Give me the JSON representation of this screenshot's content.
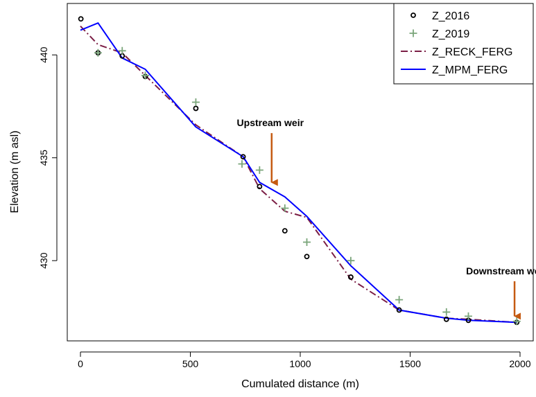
{
  "chart_data": {
    "type": "line",
    "xlabel": "Cumulated distance (m)",
    "ylabel": "Elevation (m asl)",
    "xlim": [
      -60,
      2060
    ],
    "ylim": [
      426.1,
      442.5
    ],
    "xticks": [
      0,
      500,
      1000,
      1500,
      2000
    ],
    "yticks": [
      430,
      435,
      440
    ],
    "grid": false,
    "legend_position": "top-right",
    "series": [
      {
        "name": "Z_2016",
        "kind": "points",
        "marker": "circle",
        "color": "#000000",
        "points": [
          [
            2,
            441.75
          ],
          [
            80,
            440.1
          ],
          [
            190,
            439.95
          ],
          [
            295,
            438.95
          ],
          [
            525,
            437.4
          ],
          [
            740,
            435.05
          ],
          [
            815,
            433.6
          ],
          [
            930,
            431.45
          ],
          [
            1030,
            430.2
          ],
          [
            1230,
            429.2
          ],
          [
            1450,
            427.6
          ],
          [
            1665,
            427.15
          ],
          [
            1765,
            427.1
          ],
          [
            1985,
            427.0
          ]
        ]
      },
      {
        "name": "Z_2019",
        "kind": "points",
        "marker": "plus",
        "color": "#7aa57a",
        "points": [
          [
            80,
            440.1
          ],
          [
            190,
            440.2
          ],
          [
            295,
            439.0
          ],
          [
            525,
            437.7
          ],
          [
            735,
            434.7
          ],
          [
            815,
            434.4
          ],
          [
            930,
            432.55
          ],
          [
            1030,
            430.9
          ],
          [
            1230,
            430.0
          ],
          [
            1450,
            428.1
          ],
          [
            1665,
            427.5
          ],
          [
            1765,
            427.3
          ],
          [
            1985,
            427.05
          ]
        ]
      },
      {
        "name": "Z_RECK_FERG",
        "kind": "line",
        "dash": "10,4,2,4",
        "color": "#7b1e45",
        "points": [
          [
            0,
            441.4
          ],
          [
            80,
            440.5
          ],
          [
            190,
            440.1
          ],
          [
            295,
            439.0
          ],
          [
            525,
            436.6
          ],
          [
            740,
            435.05
          ],
          [
            815,
            433.5
          ],
          [
            930,
            432.4
          ],
          [
            1030,
            432.1
          ],
          [
            1230,
            429.1
          ],
          [
            1450,
            427.6
          ],
          [
            1665,
            427.2
          ],
          [
            1765,
            427.15
          ],
          [
            1985,
            427.0
          ]
        ]
      },
      {
        "name": "Z_MPM_FERG",
        "kind": "line",
        "dash": "",
        "color": "#0000ff",
        "points": [
          [
            0,
            441.2
          ],
          [
            80,
            441.55
          ],
          [
            190,
            439.85
          ],
          [
            295,
            439.3
          ],
          [
            525,
            436.5
          ],
          [
            740,
            435.05
          ],
          [
            815,
            433.8
          ],
          [
            930,
            433.1
          ],
          [
            1030,
            432.15
          ],
          [
            1230,
            429.75
          ],
          [
            1450,
            427.6
          ],
          [
            1665,
            427.2
          ],
          [
            1765,
            427.1
          ],
          [
            1985,
            427.0
          ]
        ]
      }
    ],
    "annotations": [
      {
        "text": "Upstream weir",
        "arrow_from": [
          870,
          436.2
        ],
        "arrow_to": [
          870,
          433.8
        ],
        "color": "#c55a11"
      },
      {
        "text": "Downstream weir",
        "arrow_from": [
          1975,
          429.0
        ],
        "arrow_to": [
          1975,
          427.3
        ],
        "color": "#c55a11"
      }
    ]
  }
}
